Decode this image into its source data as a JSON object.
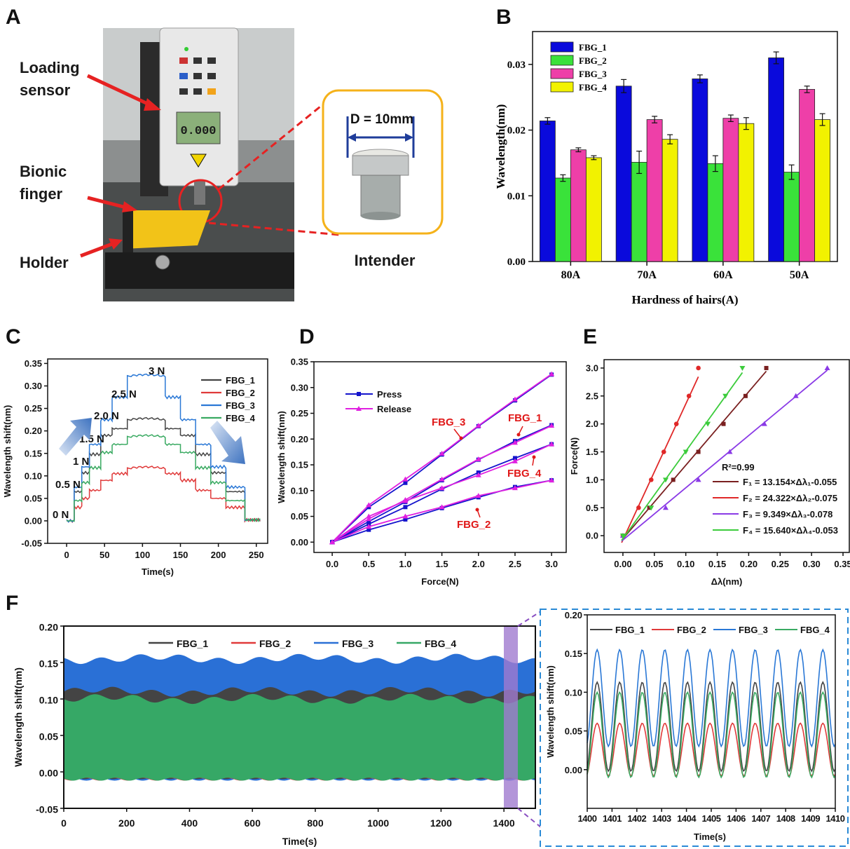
{
  "panels": {
    "A": "A",
    "B": "B",
    "C": "C",
    "D": "D",
    "E": "E",
    "F": "F"
  },
  "photo": {
    "labels": [
      "Loading sensor",
      "Bionic finger",
      "Holder"
    ],
    "label_lines": [
      [
        "Loading",
        "sensor"
      ],
      [
        "Bionic",
        "finger"
      ],
      [
        "Holder"
      ]
    ],
    "inset_dim": "D = 10mm",
    "inset_caption": "Intender",
    "display_reading": "0.000",
    "colors": {
      "arrow": "#e62222",
      "inset_border": "#f5b21a",
      "finger": "#f2c318",
      "base": "#1c1c1c"
    }
  },
  "chart_data": [
    {
      "id": "B",
      "type": "bar",
      "title": "",
      "xlabel": "Hardness of hairs(A)",
      "ylabel": "Wavelength(nm)",
      "ylim": [
        0,
        0.035
      ],
      "yticks": [
        0.0,
        0.01,
        0.02,
        0.03
      ],
      "ytick_labels": [
        "0.00",
        "0.01",
        "0.02",
        "0.03"
      ],
      "categories": [
        "80A",
        "70A",
        "60A",
        "50A"
      ],
      "legend_placement": "top-left",
      "series": [
        {
          "name": "FBG_1",
          "color": "#0a0adc",
          "values": [
            0.0214,
            0.0267,
            0.0278,
            0.031
          ],
          "errors": [
            0.0005,
            0.001,
            0.0006,
            0.0009
          ]
        },
        {
          "name": "FBG_2",
          "color": "#3ae23a",
          "values": [
            0.0127,
            0.0151,
            0.0149,
            0.0136
          ],
          "errors": [
            0.0005,
            0.0017,
            0.0012,
            0.0011
          ]
        },
        {
          "name": "FBG_3",
          "color": "#ee3fa8",
          "values": [
            0.017,
            0.0216,
            0.0218,
            0.0262
          ],
          "errors": [
            0.0003,
            0.0005,
            0.0005,
            0.0005
          ]
        },
        {
          "name": "FBG_4",
          "color": "#f2f200",
          "values": [
            0.0158,
            0.0186,
            0.021,
            0.0216
          ],
          "errors": [
            0.0003,
            0.0007,
            0.0009,
            0.0009
          ]
        }
      ]
    },
    {
      "id": "C",
      "type": "line",
      "xlabel": "Time(s)",
      "ylabel": "Wavelength shift(nm)",
      "xlim": [
        -25,
        265
      ],
      "ylim": [
        -0.05,
        0.36
      ],
      "xticks": [
        0,
        50,
        100,
        150,
        200,
        250
      ],
      "yticks": [
        -0.05,
        0.0,
        0.05,
        0.1,
        0.15,
        0.2,
        0.25,
        0.3,
        0.35
      ],
      "ytick_labels": [
        "-0.05",
        "0.00",
        "0.05",
        "0.10",
        "0.15",
        "0.20",
        "0.25",
        "0.30",
        "0.35"
      ],
      "legend_placement": "top-right",
      "force_levels": [
        "0 N",
        "0.5 N",
        "1 N",
        "1.5 N",
        "2.0 N",
        "2.5 N",
        "3 N"
      ],
      "step_times": [
        0,
        10,
        20,
        30,
        40,
        55,
        70,
        95,
        140,
        160,
        175,
        190,
        205,
        220,
        235,
        255
      ],
      "series": [
        {
          "name": "FBG_1",
          "color": "#444444",
          "levels": [
            0.0,
            0.065,
            0.107,
            0.148,
            0.19,
            0.205,
            0.228,
            0.002
          ]
        },
        {
          "name": "FBG_2",
          "color": "#e03a3a",
          "levels": [
            0.0,
            0.03,
            0.05,
            0.068,
            0.09,
            0.105,
            0.12,
            0.002
          ]
        },
        {
          "name": "FBG_3",
          "color": "#2a78d6",
          "levels": [
            0.0,
            0.075,
            0.12,
            0.17,
            0.225,
            0.275,
            0.325,
            0.002
          ]
        },
        {
          "name": "FBG_4",
          "color": "#3aaa62",
          "levels": [
            0.0,
            0.045,
            0.085,
            0.118,
            0.152,
            0.17,
            0.19,
            0.002
          ]
        }
      ]
    },
    {
      "id": "D",
      "type": "line",
      "xlabel": "Force(N)",
      "ylabel": "Wavelength shift(nm)",
      "xlim": [
        -0.25,
        3.2
      ],
      "ylim": [
        -0.02,
        0.35
      ],
      "xticks": [
        0.0,
        0.5,
        1.0,
        1.5,
        2.0,
        2.5,
        3.0
      ],
      "xtick_labels": [
        "0.0",
        "0.5",
        "1.0",
        "1.5",
        "2.0",
        "2.5",
        "3.0"
      ],
      "yticks": [
        0.0,
        0.05,
        0.1,
        0.15,
        0.2,
        0.25,
        0.3,
        0.35
      ],
      "ytick_labels": [
        "0.00",
        "0.05",
        "0.10",
        "0.15",
        "0.20",
        "0.25",
        "0.30",
        "0.35"
      ],
      "x": [
        0,
        0.5,
        1.0,
        1.5,
        2.0,
        2.5,
        3.0
      ],
      "legend": [
        {
          "name": "Press",
          "color": "#1414cc"
        },
        {
          "name": "Release",
          "color": "#e020e0"
        }
      ],
      "annotations": [
        "FBG_3",
        "FBG_1",
        "FBG_4",
        "FBG_2"
      ],
      "series": [
        {
          "name": "FBG_3 Press",
          "group": "Press",
          "values": [
            0,
            0.068,
            0.115,
            0.17,
            0.225,
            0.275,
            0.325
          ]
        },
        {
          "name": "FBG_3 Release",
          "group": "Release",
          "values": [
            0,
            0.072,
            0.122,
            0.172,
            0.226,
            0.277,
            0.326
          ]
        },
        {
          "name": "FBG_1 Press",
          "group": "Press",
          "values": [
            0,
            0.04,
            0.078,
            0.12,
            0.16,
            0.196,
            0.227
          ]
        },
        {
          "name": "FBG_1 Release",
          "group": "Release",
          "values": [
            0,
            0.045,
            0.082,
            0.122,
            0.161,
            0.193,
            0.226
          ]
        },
        {
          "name": "FBG_4 Press",
          "group": "Press",
          "values": [
            0,
            0.035,
            0.068,
            0.103,
            0.135,
            0.163,
            0.19
          ]
        },
        {
          "name": "FBG_4 Release",
          "group": "Release",
          "values": [
            0,
            0.05,
            0.08,
            0.105,
            0.13,
            0.157,
            0.19
          ]
        },
        {
          "name": "FBG_2 Press",
          "group": "Press",
          "values": [
            0,
            0.024,
            0.044,
            0.066,
            0.087,
            0.107,
            0.12
          ]
        },
        {
          "name": "FBG_2 Release",
          "group": "Release",
          "values": [
            0,
            0.03,
            0.05,
            0.068,
            0.09,
            0.105,
            0.12
          ]
        }
      ]
    },
    {
      "id": "E",
      "type": "scatter",
      "xlabel": "Δλ(nm)",
      "ylabel": "Force(N)",
      "xlim": [
        -0.03,
        0.36
      ],
      "ylim": [
        -0.3,
        3.15
      ],
      "xticks": [
        0.0,
        0.05,
        0.1,
        0.15,
        0.2,
        0.25,
        0.3,
        0.35
      ],
      "xtick_labels": [
        "0.00",
        "0.05",
        "0.10",
        "0.15",
        "0.20",
        "0.25",
        "0.30",
        "0.35"
      ],
      "yticks": [
        0.0,
        0.5,
        1.0,
        1.5,
        2.0,
        2.5,
        3.0
      ],
      "ytick_labels": [
        "0.0",
        "0.5",
        "1.0",
        "1.5",
        "2.0",
        "2.5",
        "3.0"
      ],
      "r_squared": "R²=0.99",
      "fits": [
        {
          "label": "F₁ = 13.154×Δλ₁-0.055",
          "color": "#7a2020",
          "slope": 13.154,
          "intercept": -0.055,
          "marker": "square",
          "x": [
            0,
            0.042,
            0.08,
            0.12,
            0.16,
            0.195,
            0.228
          ]
        },
        {
          "label": "F₂ = 24.322×Δλ₂-0.075",
          "color": "#e02828",
          "slope": 24.322,
          "intercept": -0.075,
          "marker": "circle",
          "x": [
            0,
            0.025,
            0.045,
            0.065,
            0.085,
            0.105,
            0.12
          ]
        },
        {
          "label": "F₃ = 9.349×Δλ₃-0.078",
          "color": "#8a3ae6",
          "slope": 9.349,
          "intercept": -0.078,
          "marker": "triangle-up",
          "x": [
            0,
            0.068,
            0.12,
            0.17,
            0.225,
            0.275,
            0.325
          ]
        },
        {
          "label": "F₄ = 15.640×Δλ₄-0.053",
          "color": "#3ccc3c",
          "slope": 15.64,
          "intercept": -0.053,
          "marker": "triangle-down",
          "x": [
            0,
            0.045,
            0.068,
            0.1,
            0.135,
            0.163,
            0.19
          ]
        }
      ]
    },
    {
      "id": "F-main",
      "type": "area",
      "xlabel": "Time(s)",
      "ylabel": "Wavelength shift(nm)",
      "xlim": [
        0,
        1500
      ],
      "ylim": [
        -0.05,
        0.2
      ],
      "xticks": [
        0,
        200,
        400,
        600,
        800,
        1000,
        1200,
        1400
      ],
      "yticks": [
        -0.05,
        0.0,
        0.05,
        0.1,
        0.15,
        0.2
      ],
      "ytick_labels": [
        "-0.05",
        "0.00",
        "0.05",
        "0.10",
        "0.15",
        "0.20"
      ],
      "legend_placement": "top-center",
      "highlight_range": [
        1400,
        1410
      ],
      "series": [
        {
          "name": "FBG_1",
          "color": "#444444",
          "range": [
            -0.008,
            0.11
          ]
        },
        {
          "name": "FBG_2",
          "color": "#e03a3a",
          "range": [
            -0.01,
            0.06
          ]
        },
        {
          "name": "FBG_3",
          "color": "#2a70d6",
          "range": [
            -0.01,
            0.155
          ]
        },
        {
          "name": "FBG_4",
          "color": "#36a866",
          "range": [
            -0.01,
            0.1
          ]
        }
      ]
    },
    {
      "id": "F-inset",
      "type": "line",
      "xlabel": "Time(s)",
      "ylabel": "Wavelength shift(nm)",
      "xlim": [
        1400,
        1410
      ],
      "ylim": [
        -0.05,
        0.2
      ],
      "xticks": [
        1400,
        1401,
        1402,
        1403,
        1404,
        1405,
        1406,
        1407,
        1408,
        1409,
        1410
      ],
      "yticks": [
        0.0,
        0.05,
        0.1,
        0.15,
        0.2
      ],
      "ytick_labels": [
        "0.00",
        "0.05",
        "0.10",
        "0.15",
        "0.20"
      ],
      "legend_placement": "top",
      "period_s": 0.91,
      "series": [
        {
          "name": "FBG_1",
          "color": "#444444",
          "min": -0.002,
          "max": 0.113
        },
        {
          "name": "FBG_2",
          "color": "#e03a3a",
          "min": -0.008,
          "max": 0.06
        },
        {
          "name": "FBG_3",
          "color": "#2a78d6",
          "min": 0.03,
          "max": 0.155
        },
        {
          "name": "FBG_4",
          "color": "#3aaa62",
          "min": -0.01,
          "max": 0.1
        }
      ]
    }
  ]
}
